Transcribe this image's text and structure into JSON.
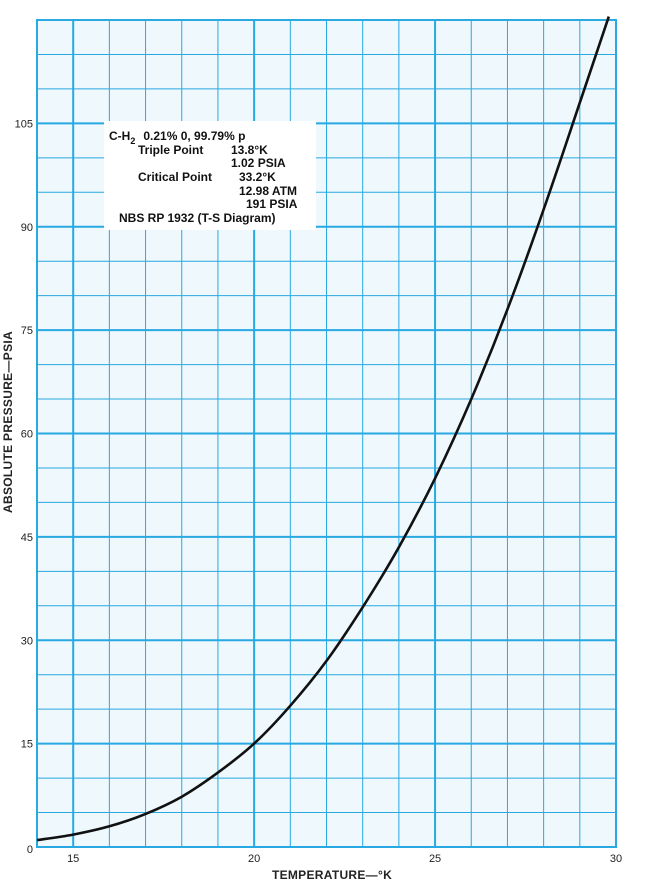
{
  "chart_data": {
    "type": "line",
    "xlabel": "TEMPERATURE—°K",
    "ylabel": "ABSOLUTE PRESSURE—PSIA",
    "xlim": [
      14,
      30
    ],
    "ylim": [
      0,
      120
    ],
    "x_ticks": [
      15,
      20,
      25,
      30
    ],
    "y_ticks": [
      0,
      15,
      30,
      45,
      60,
      75,
      90,
      105
    ],
    "grid": true,
    "series": [
      {
        "x": [
          14.0,
          15.0,
          16.0,
          17.0,
          18.0,
          19.0,
          20.0,
          21.0,
          22.0,
          23.0,
          24.0,
          25.0,
          26.0,
          27.0,
          28.0,
          29.0,
          29.8
        ],
        "y": [
          1.0,
          1.8,
          3.0,
          4.8,
          7.3,
          10.8,
          15.0,
          20.5,
          27.0,
          34.8,
          43.5,
          53.5,
          65.0,
          78.0,
          92.5,
          108.0,
          120.5
        ]
      }
    ],
    "annotations": {
      "line1_main": "C-H",
      "line1_sub": "2",
      "line1_rest": "0.21% 0, 99.79% p",
      "triple_point_label": "Triple Point",
      "triple_point_temp": "13.8°K",
      "triple_point_pressure": "1.02 PSIA",
      "critical_point_label": "Critical Point",
      "critical_point_temp": "33.2°K",
      "critical_point_atm": "12.98 ATM",
      "critical_point_psia": "191 PSIA",
      "source": "NBS RP 1932 (T-S Diagram)"
    },
    "colors": {
      "grid": "#29a9e1",
      "paper": "#eef8fd",
      "curve": "#111111"
    }
  }
}
